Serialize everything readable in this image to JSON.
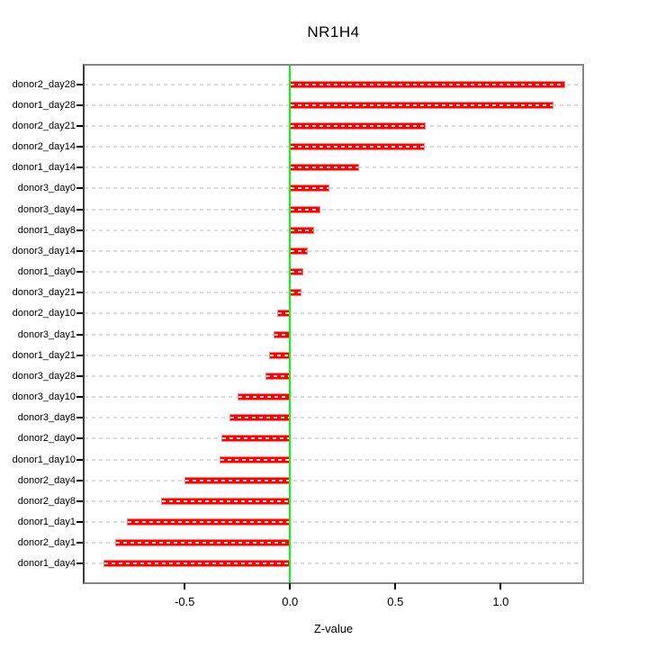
{
  "title": "NR1H4",
  "chart_data": {
    "type": "bar",
    "orientation": "horizontal",
    "title": "NR1H4",
    "xlabel": "Z-value",
    "ylabel": "",
    "grid": true,
    "xlim": [
      -0.975,
      1.387
    ],
    "x_ticks": [
      -0.5,
      0.0,
      0.5,
      1.0
    ],
    "x_tick_labels": [
      "-0.5",
      "0.0",
      "0.5",
      "1.0"
    ],
    "categories": [
      "donor2_day28",
      "donor1_day28",
      "donor2_day21",
      "donor2_day14",
      "donor1_day14",
      "donor3_day0",
      "donor3_day4",
      "donor1_day8",
      "donor3_day14",
      "donor1_day0",
      "donor3_day21",
      "donor2_day10",
      "donor3_day1",
      "donor1_day21",
      "donor3_day28",
      "donor3_day10",
      "donor3_day8",
      "donor2_day0",
      "donor1_day10",
      "donor2_day4",
      "donor2_day8",
      "donor1_day1",
      "donor2_day1",
      "donor1_day4"
    ],
    "values": [
      1.305,
      1.252,
      0.645,
      0.638,
      0.327,
      0.187,
      0.143,
      0.115,
      0.083,
      0.065,
      0.053,
      -0.061,
      -0.078,
      -0.1,
      -0.117,
      -0.248,
      -0.286,
      -0.325,
      -0.333,
      -0.5,
      -0.613,
      -0.774,
      -0.83,
      -0.887
    ],
    "colors": {
      "bar": "#ff0000",
      "bar_edge": "#ff8080",
      "zero_line": "#00ff00",
      "grid": "#dcdcdc",
      "frame": "#878787",
      "text": "#000000"
    }
  }
}
